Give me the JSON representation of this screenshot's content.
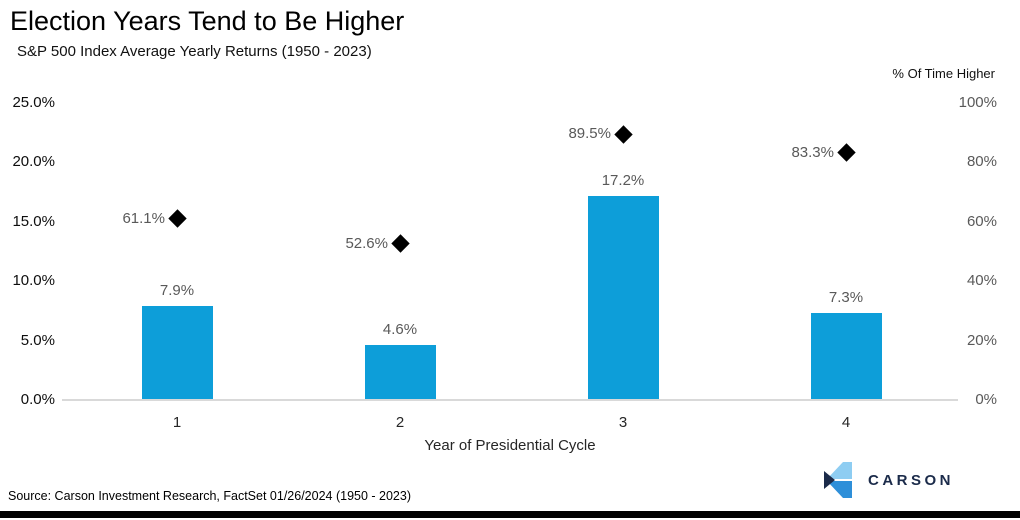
{
  "header": {
    "title": "Election Years Tend to Be Higher",
    "subtitle": "S&P 500 Index Average Yearly Returns (1950 - 2023)",
    "right_axis_title": "% Of Time Higher"
  },
  "chart_data": {
    "type": "bar",
    "categories": [
      "1",
      "2",
      "3",
      "4"
    ],
    "xlabel": "Year of Presidential Cycle",
    "series": [
      {
        "name": "S&P 500 Index Average Yearly Returns",
        "type": "bar",
        "axis": "left",
        "values": [
          7.9,
          4.6,
          17.2,
          7.3
        ],
        "labels": [
          "7.9%",
          "4.6%",
          "17.2%",
          "7.3%"
        ],
        "color": "#0d9ed9"
      },
      {
        "name": "% Of Time Higher",
        "type": "diamond-marker",
        "axis": "right",
        "values": [
          61.1,
          52.6,
          89.5,
          83.3
        ],
        "labels": [
          "61.1%",
          "52.6%",
          "89.5%",
          "83.3%"
        ],
        "color": "#000000"
      }
    ],
    "left_axis": {
      "tick_labels": [
        "0.0%",
        "5.0%",
        "10.0%",
        "15.0%",
        "20.0%",
        "25.0%"
      ],
      "tick_values": [
        0,
        5,
        10,
        15,
        20,
        25
      ],
      "min": 0,
      "max": 25
    },
    "right_axis": {
      "tick_labels": [
        "0%",
        "20%",
        "40%",
        "60%",
        "80%",
        "100%"
      ],
      "tick_values": [
        0,
        20,
        40,
        60,
        80,
        100
      ],
      "min": 0,
      "max": 100
    },
    "grid": false,
    "legend": "none"
  },
  "footer": {
    "source": "Source: Carson Investment Research, FactSet 01/26/2024 (1950 - 2023)",
    "logo_text": "CARSON"
  },
  "colors": {
    "bar": "#0d9ed9",
    "marker": "#000000",
    "data_label": "#595959",
    "axis_line": "#d9d9d9",
    "logo_navy": "#1b2b4a",
    "logo_light_blue": "#8ecdf2",
    "logo_mid_blue": "#2e8fd9"
  }
}
